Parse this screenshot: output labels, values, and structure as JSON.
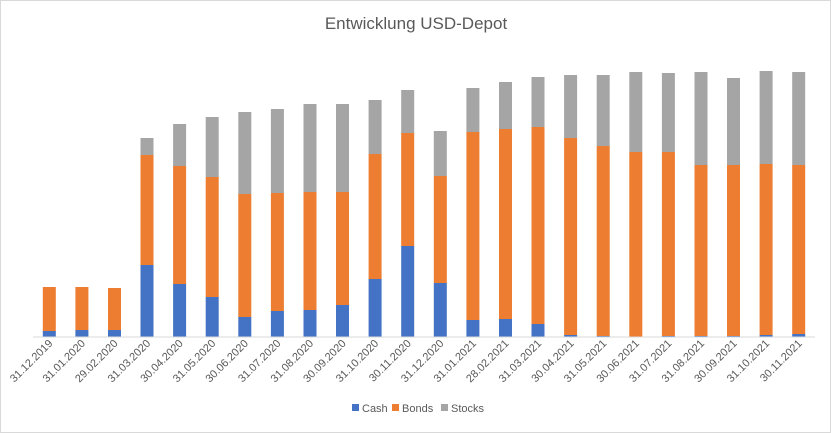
{
  "chart_data": {
    "type": "bar",
    "stacked": true,
    "title": "Entwicklung USD-Depot",
    "xlabel": "",
    "ylabel": "",
    "y_axis_visible": false,
    "grid": false,
    "legend_position": "bottom",
    "categories": [
      "31.12.2019",
      "31.01.2020",
      "29.02.2020",
      "31.03.2020",
      "30.04.2020",
      "31.05.2020",
      "30.06.2020",
      "31.07.2020",
      "31.08.2020",
      "30.09.2020",
      "31.10.2020",
      "30.11.2020",
      "31.12.2020",
      "31.01.2021",
      "28.02.2021",
      "31.03.2021",
      "30.04.2021",
      "31.05.2021",
      "30.06.2021",
      "31.07.2021",
      "31.08.2021",
      "30.09.2021",
      "31.10.2021",
      "30.11.2021"
    ],
    "series": [
      {
        "name": "Cash",
        "color": "#4472C4",
        "values": [
          6,
          7,
          7,
          72,
          53,
          40,
          20,
          26,
          27,
          32,
          58,
          91,
          54,
          17,
          18,
          13,
          2,
          1,
          0,
          1,
          1,
          1,
          2,
          3
        ]
      },
      {
        "name": "Bonds",
        "color": "#ED7D31",
        "values": [
          44,
          43,
          42,
          110,
          118,
          120,
          123,
          118,
          118,
          113,
          125,
          113,
          107,
          188,
          190,
          197,
          197,
          190,
          185,
          184,
          171,
          171,
          171,
          169
        ]
      },
      {
        "name": "Stocks",
        "color": "#A5A5A5",
        "values": [
          0,
          0,
          0,
          17,
          42,
          60,
          82,
          84,
          88,
          88,
          54,
          43,
          45,
          44,
          47,
          50,
          63,
          71,
          80,
          79,
          93,
          87,
          93,
          93
        ]
      }
    ]
  }
}
